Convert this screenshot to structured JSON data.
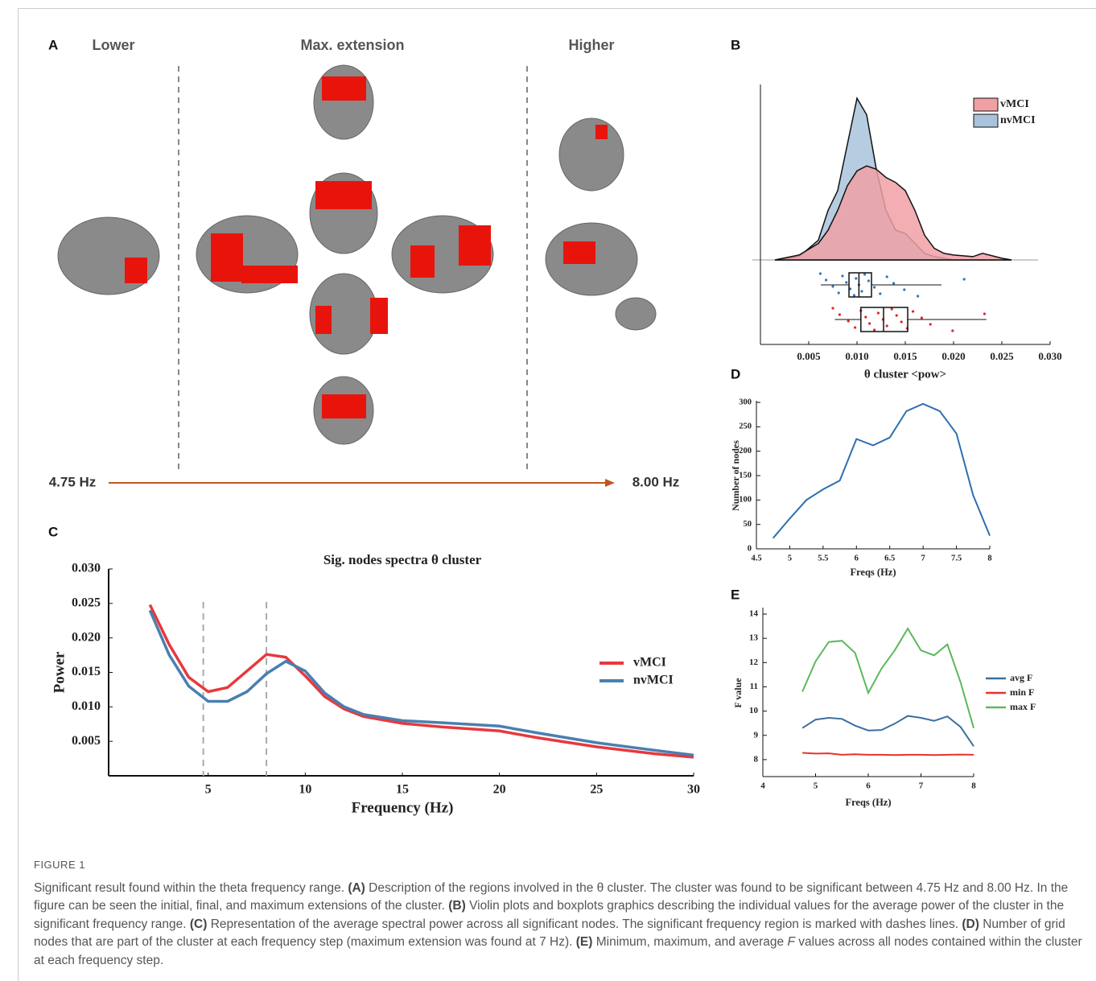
{
  "panel_a": {
    "label": "A",
    "lower": "Lower",
    "max": "Max. extension",
    "higher": "Higher",
    "start": "4.75 Hz",
    "end": "8.00 Hz"
  },
  "chart_data": [
    {
      "type": "violin",
      "panel": "B",
      "xlabel": "θ cluster <pow>",
      "xlim": [
        0,
        0.03
      ],
      "xticks": [
        0.005,
        {
          "value": 0.01,
          "label": "0.010"
        },
        0.015,
        {
          "value": 0.02,
          "label": "0.020"
        },
        0.025,
        {
          "value": 0.03,
          "label": "0.030"
        }
      ],
      "density_x": [
        0.0015,
        0.004,
        0.006,
        0.007,
        0.008,
        0.009,
        0.01,
        0.011,
        0.012,
        0.013,
        0.014,
        0.015,
        0.016,
        0.017,
        0.018,
        0.019,
        0.02,
        0.022,
        0.023,
        0.025,
        0.026
      ],
      "series": [
        {
          "name": "vMCI",
          "color": "#f0a0a4",
          "point_color": "#e0262a",
          "density": [
            0,
            0.03,
            0.1,
            0.18,
            0.3,
            0.45,
            0.54,
            0.57,
            0.55,
            0.5,
            0.47,
            0.42,
            0.3,
            0.15,
            0.07,
            0.04,
            0.03,
            0.02,
            0.04,
            0.01,
            0
          ],
          "box": {
            "min": 0.0077,
            "q1": 0.0104,
            "median": 0.01275,
            "q3": 0.01525,
            "max": 0.0234
          },
          "points": [
            0.0075,
            0.0082,
            0.0091,
            0.0098,
            0.0104,
            0.0109,
            0.0113,
            0.0118,
            0.0122,
            0.0127,
            0.0131,
            0.0136,
            0.0141,
            0.0146,
            0.0152,
            0.0158,
            0.0167,
            0.0176,
            0.0199,
            0.0232
          ]
        },
        {
          "name": "nvMCI",
          "color": "#a9c3dc",
          "point_color": "#2f78b8",
          "density": [
            0,
            0.02,
            0.12,
            0.3,
            0.42,
            0.7,
            0.98,
            0.88,
            0.55,
            0.3,
            0.18,
            0.16,
            0.1,
            0.04,
            0.02,
            0.01,
            0,
            0,
            0,
            0,
            0
          ],
          "box": {
            "min": 0.00625,
            "q1": 0.00917,
            "median": 0.0102,
            "q3": 0.0115,
            "max": 0.01875
          },
          "points": [
            0.0062,
            0.0068,
            0.0075,
            0.0081,
            0.0085,
            0.0089,
            0.0093,
            0.0097,
            0.0099,
            0.0102,
            0.0105,
            0.0108,
            0.0112,
            0.0118,
            0.0124,
            0.0131,
            0.0138,
            0.0149,
            0.0163,
            0.0211
          ]
        }
      ]
    },
    {
      "type": "line",
      "panel": "C",
      "title": "Sig. nodes spectra θ cluster",
      "xlabel": "Frequency (Hz)",
      "ylabel": "Power",
      "xlim": [
        0,
        30
      ],
      "ylim": [
        0,
        0.03
      ],
      "xticks": [
        5,
        10,
        15,
        20,
        25,
        30
      ],
      "yticks": [
        0.005,
        {
          "value": 0.01,
          "label": "0.010"
        },
        0.015,
        {
          "value": 0.02,
          "label": "0.020"
        },
        0.025,
        {
          "value": 0.03,
          "label": "0.030"
        }
      ],
      "markers": [
        4.75,
        8
      ],
      "x": [
        2,
        3,
        4,
        5,
        6,
        7,
        8,
        9,
        10,
        11,
        12,
        13,
        15,
        17,
        20,
        22,
        25,
        28,
        30
      ],
      "series": [
        {
          "name": "vMCI",
          "color": "#e8383d",
          "values": [
            0.0248,
            0.019,
            0.0143,
            0.0122,
            0.0128,
            0.0152,
            0.0176,
            0.0172,
            0.0145,
            0.0115,
            0.0097,
            0.0086,
            0.0076,
            0.0071,
            0.0065,
            0.0055,
            0.0042,
            0.0032,
            0.0027
          ]
        },
        {
          "name": "nvMCI",
          "color": "#4a7fb0",
          "values": [
            0.024,
            0.0175,
            0.013,
            0.0108,
            0.0108,
            0.0122,
            0.0148,
            0.0166,
            0.0152,
            0.012,
            0.01,
            0.0089,
            0.008,
            0.0077,
            0.0072,
            0.0062,
            0.0048,
            0.0037,
            0.003
          ]
        }
      ]
    },
    {
      "type": "line",
      "panel": "D",
      "xlabel": "Freqs (Hz)",
      "ylabel": "Number of nodes",
      "xlim": [
        4.5,
        8
      ],
      "ylim": [
        0,
        300
      ],
      "xticks": [
        4.5,
        5,
        5.5,
        6,
        6.5,
        7,
        7.5,
        8
      ],
      "yticks": [
        0,
        50,
        100,
        150,
        200,
        250,
        300
      ],
      "x": [
        4.75,
        5,
        5.25,
        5.5,
        5.75,
        6,
        6.25,
        6.5,
        6.75,
        7,
        7.25,
        7.5,
        7.75,
        8
      ],
      "series": [
        {
          "color": "#2e6fb0",
          "values": [
            22,
            62,
            100,
            122,
            140,
            225,
            212,
            228,
            282,
            297,
            282,
            236,
            110,
            27
          ]
        }
      ]
    },
    {
      "type": "line",
      "panel": "E",
      "xlabel": "Freqs (Hz)",
      "ylabel": "F value",
      "xlim": [
        4,
        8
      ],
      "ylim": [
        7.3,
        14.2
      ],
      "xticks": [
        4,
        5,
        6,
        7,
        8
      ],
      "yticks": [
        8,
        9,
        10,
        11,
        12,
        13,
        14
      ],
      "x": [
        4.75,
        5,
        5.25,
        5.5,
        5.75,
        6,
        6.25,
        6.5,
        6.75,
        7,
        7.25,
        7.5,
        7.75,
        8
      ],
      "series": [
        {
          "name": "avg F",
          "color": "#3a6fa0",
          "values": [
            9.3,
            9.65,
            9.72,
            9.68,
            9.4,
            9.2,
            9.22,
            9.48,
            9.8,
            9.72,
            9.6,
            9.78,
            9.35,
            8.55
          ]
        },
        {
          "name": "min F",
          "color": "#e8322c",
          "values": [
            8.28,
            8.25,
            8.26,
            8.2,
            8.22,
            8.2,
            8.2,
            8.19,
            8.2,
            8.2,
            8.19,
            8.2,
            8.21,
            8.2
          ]
        },
        {
          "name": "max F",
          "color": "#5cb85c",
          "values": [
            10.8,
            12.05,
            12.85,
            12.9,
            12.4,
            10.75,
            11.75,
            12.5,
            13.4,
            12.5,
            12.3,
            12.75,
            11.2,
            9.3
          ]
        }
      ]
    }
  ],
  "caption": {
    "label": "FIGURE 1",
    "parts": [
      "Significant result found within the theta frequency range. ",
      "(A)",
      " Description of the regions involved in the θ cluster. The cluster was found to be significant between 4.75 Hz and 8.00 Hz. In the figure can be seen the initial, final, and maximum extensions of the cluster. ",
      "(B)",
      " Violin plots and boxplots graphics describing the individual values for the average power of the cluster in the significant frequency range. ",
      "(C)",
      " Representation of the average spectral power across all significant nodes. The significant frequency region is marked with dashes lines. ",
      "(D)",
      " Number of grid nodes that are part of the cluster at each frequency step (maximum extension was found at 7 Hz). ",
      "(E)",
      " Minimum, maximum, and average ",
      "F",
      " values across all nodes contained within the cluster at each frequency step."
    ]
  }
}
